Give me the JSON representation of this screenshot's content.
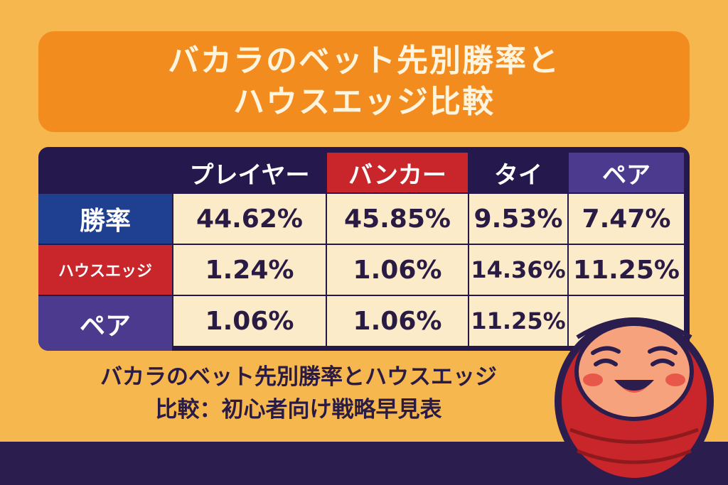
{
  "title": {
    "line1": "バカラのベット先別勝率と",
    "line2": "ハウスエッジ比較"
  },
  "table": {
    "headers": [
      "プレイヤー",
      "バンカー",
      "タイ",
      "ペア"
    ],
    "rows": [
      {
        "label": "勝率",
        "values": [
          "44.62%",
          "45.85%",
          "9.53%",
          "7.47%"
        ]
      },
      {
        "label": "ハウスエッジ",
        "values": [
          "1.24%",
          "1.06%",
          "14.36%",
          "11.25%"
        ]
      },
      {
        "label": "ペア",
        "values": [
          "1.06%",
          "1.06%",
          "11.25%",
          ""
        ]
      }
    ]
  },
  "caption": {
    "line1": "バカラのベット先別勝率とハウスエッジ",
    "line2": "比較：初心者向け戦略早見表"
  },
  "colors": {
    "background": "#f7b74f",
    "title_box": "#f28c1e",
    "navy": "#25184d",
    "banker_red": "#c8262b",
    "pair_purple": "#4b3a8e",
    "row_blue": "#1f3f91",
    "cell_cream": "#fcebc9"
  },
  "icons": {
    "mascot": "daruma-doll"
  }
}
